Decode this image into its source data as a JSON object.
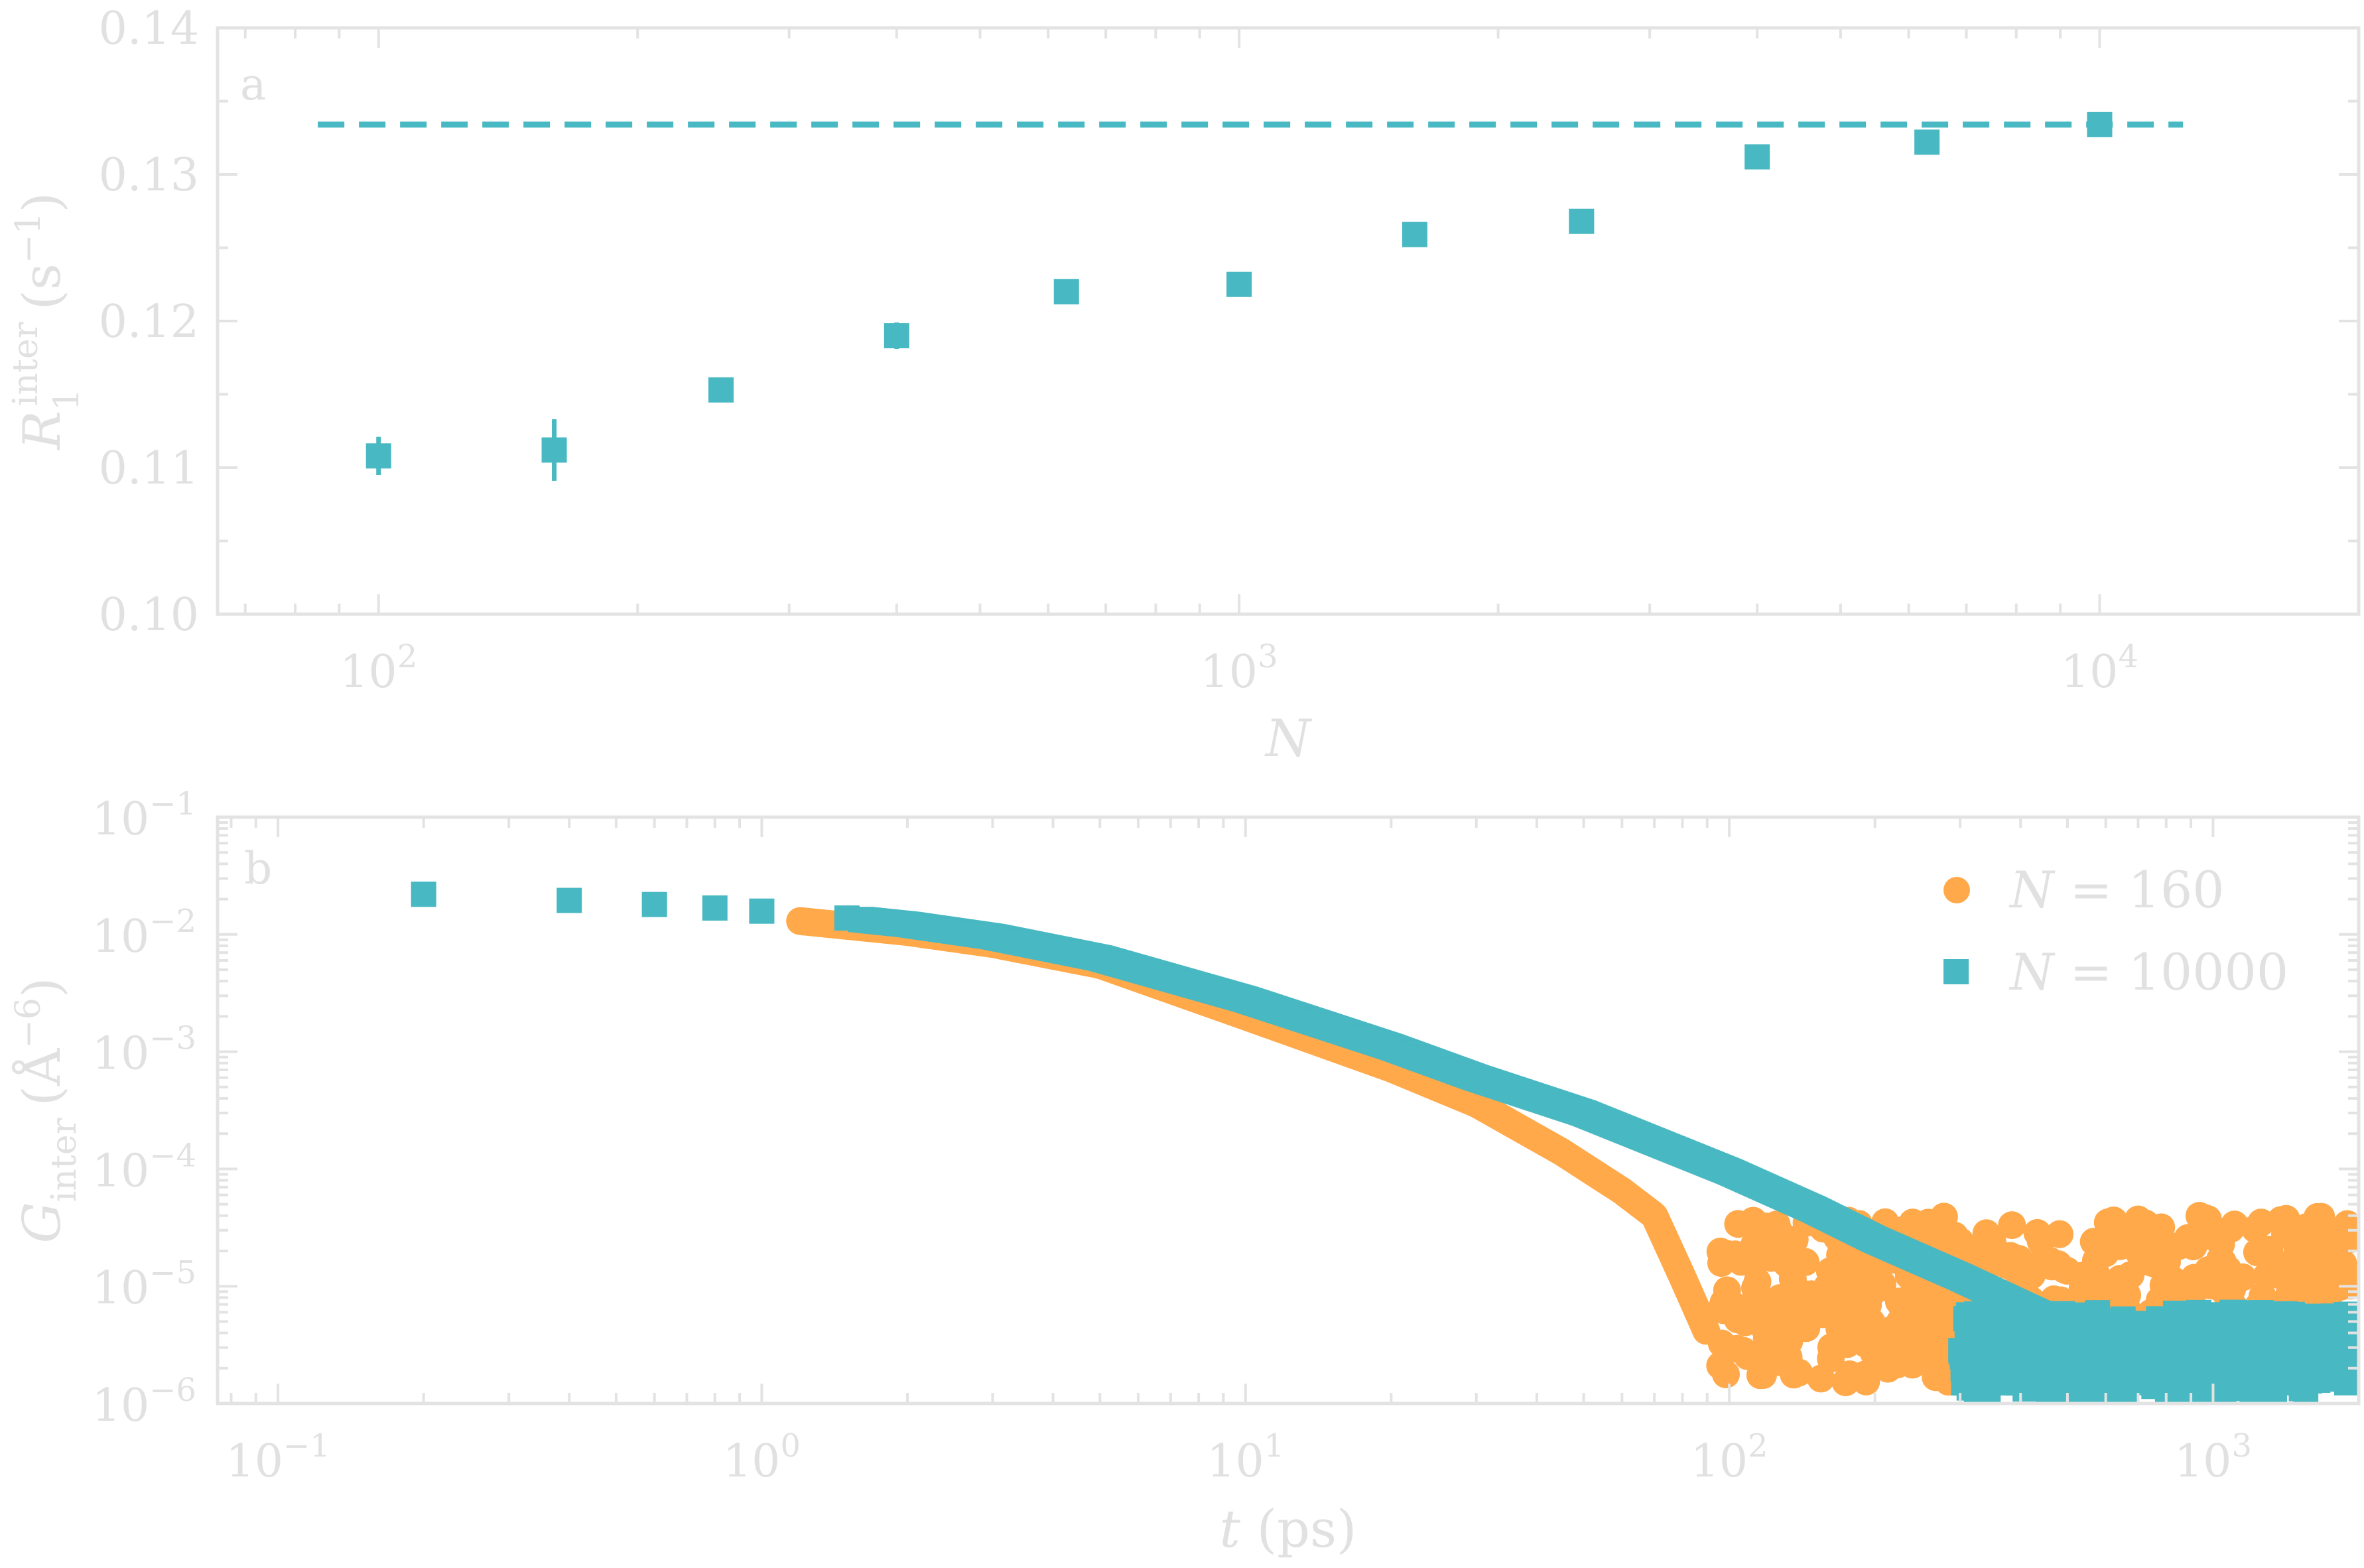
{
  "chart_data": [
    {
      "type": "scatter",
      "panel_label": "a",
      "xlabel": "N",
      "ylabel": "R1inter (s−1)",
      "ylabel_parts": {
        "symbol": "R",
        "sub": "1",
        "sup": "inter",
        "unit_open": "(s",
        "unit_exp": "−1",
        "unit_close": ")"
      },
      "x_scale": "log",
      "xlim": [
        65,
        20000
      ],
      "ylim": [
        0.1,
        0.14
      ],
      "x_ticks": [
        {
          "value": 100,
          "base": "10",
          "exp": "2"
        },
        {
          "value": 1000,
          "base": "10",
          "exp": "3"
        },
        {
          "value": 10000,
          "base": "10",
          "exp": "4"
        }
      ],
      "y_ticks": [
        {
          "value": 0.1,
          "label": "0.10"
        },
        {
          "value": 0.11,
          "label": "0.11"
        },
        {
          "value": 0.12,
          "label": "0.12"
        },
        {
          "value": 0.13,
          "label": "0.13"
        },
        {
          "value": 0.14,
          "label": "0.14"
        }
      ],
      "grid": false,
      "color": "#48b8c2",
      "series": [
        {
          "marker": "square",
          "points": [
            {
              "x": 100,
              "y": 0.1108,
              "err": 0.0013
            },
            {
              "x": 160,
              "y": 0.1112,
              "err": 0.0021
            },
            {
              "x": 250,
              "y": 0.1153,
              "err": 0.0003
            },
            {
              "x": 400,
              "y": 0.119,
              "err": 0.0009
            },
            {
              "x": 630,
              "y": 0.122,
              "err": 0.0003
            },
            {
              "x": 1000,
              "y": 0.1225,
              "err": 0.0003
            },
            {
              "x": 1600,
              "y": 0.1259,
              "err": 0.0003
            },
            {
              "x": 2500,
              "y": 0.1268,
              "err": 0.0003
            },
            {
              "x": 4000,
              "y": 0.1312,
              "err": 0.0003
            },
            {
              "x": 6300,
              "y": 0.1322,
              "err": 0.0003
            },
            {
              "x": 10000,
              "y": 0.1334,
              "err": 0.0003
            }
          ]
        }
      ],
      "reference_line": {
        "y": 0.1334,
        "x_from": 85,
        "x_to": 12500,
        "style": "dashed"
      }
    },
    {
      "type": "scatter",
      "panel_label": "b",
      "xlabel": "t (ps)",
      "xlabel_parts": {
        "symbol": "t",
        "rest": " (ps)"
      },
      "ylabel": "Ginter (Å−6)",
      "ylabel_parts": {
        "symbol": "G",
        "sub": "inter",
        "unit_open": "(Å",
        "unit_exp": "−6",
        "unit_close": ")"
      },
      "x_scale": "log",
      "y_scale": "log",
      "xlim": [
        0.075,
        2000
      ],
      "ylim": [
        1e-06,
        0.1
      ],
      "x_ticks": [
        {
          "value": 0.1,
          "base": "10",
          "exp": "−1"
        },
        {
          "value": 1,
          "base": "10",
          "exp": "0"
        },
        {
          "value": 10,
          "base": "10",
          "exp": "1"
        },
        {
          "value": 100,
          "base": "10",
          "exp": "2"
        },
        {
          "value": 1000,
          "base": "10",
          "exp": "3"
        }
      ],
      "y_ticks": [
        {
          "value": 0.1,
          "base": "10",
          "exp": "−1"
        },
        {
          "value": 0.01,
          "base": "10",
          "exp": "−2"
        },
        {
          "value": 0.001,
          "base": "10",
          "exp": "−3"
        },
        {
          "value": 0.0001,
          "base": "10",
          "exp": "−4"
        },
        {
          "value": 1e-05,
          "base": "10",
          "exp": "−5"
        },
        {
          "value": 1e-06,
          "base": "10",
          "exp": "−6"
        }
      ],
      "grid": false,
      "legend_position": "top-right",
      "series": [
        {
          "name": "N = 160",
          "legend_parts": {
            "symbol": "N",
            "rest": " = 160"
          },
          "marker": "circle",
          "color": "#ffa94a",
          "anchors": [
            [
              1.2,
              0.013
            ],
            [
              2,
              0.0105
            ],
            [
              3,
              0.0083
            ],
            [
              5,
              0.0055
            ],
            [
              10,
              0.002
            ],
            [
              20,
              0.00072
            ],
            [
              30,
              0.00036
            ],
            [
              45,
              0.00014
            ],
            [
              60,
              6.5e-05
            ],
            [
              70,
              4e-05
            ],
            [
              80,
              1.2e-05
            ],
            [
              90,
              4e-06
            ]
          ],
          "noise": {
            "x_from": 95,
            "x_to": 2000,
            "y_low": 1.5e-06,
            "y_high": 4e-05
          }
        },
        {
          "name": "N = 10000",
          "legend_parts": {
            "symbol": "N",
            "rest": " = 10000"
          },
          "marker": "square",
          "color": "#48b8c2",
          "anchors": [
            [
              0.2,
              0.022
            ],
            [
              0.4,
              0.0195
            ],
            [
              0.6,
              0.018
            ],
            [
              0.8,
              0.0168
            ],
            [
              1.0,
              0.0158
            ],
            [
              1.5,
              0.0138
            ],
            [
              2,
              0.0122
            ],
            [
              3,
              0.0096
            ],
            [
              5,
              0.0063
            ],
            [
              10,
              0.0028
            ],
            [
              20,
              0.0011
            ],
            [
              30,
              0.0006
            ],
            [
              50,
              0.0003
            ],
            [
              100,
              9.5e-05
            ],
            [
              150,
              4.5e-05
            ],
            [
              200,
              2.5e-05
            ],
            [
              300,
              1.2e-05
            ],
            [
              500,
              4.5e-06
            ],
            [
              800,
              2.5e-06
            ],
            [
              2000,
              1.7e-06
            ]
          ],
          "noise": {
            "x_from": 300,
            "x_to": 2000,
            "y_low": 1.2e-06,
            "y_high": 6e-06
          }
        }
      ]
    }
  ]
}
